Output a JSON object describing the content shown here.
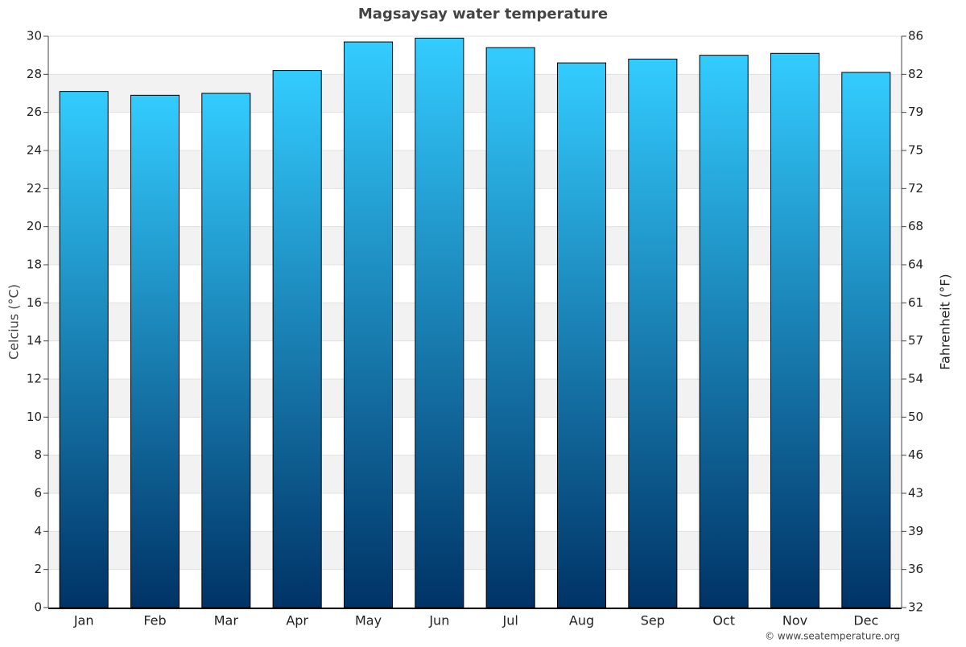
{
  "chart_data": {
    "type": "bar",
    "title": "Magsaysay water temperature",
    "categories": [
      "Jan",
      "Feb",
      "Mar",
      "Apr",
      "May",
      "Jun",
      "Jul",
      "Aug",
      "Sep",
      "Oct",
      "Nov",
      "Dec"
    ],
    "values": [
      27.1,
      26.9,
      27.0,
      28.2,
      29.7,
      29.9,
      29.4,
      28.6,
      28.8,
      29.0,
      29.1,
      28.1
    ],
    "color_top": "#33ccff",
    "color_bottom": "#003366",
    "ylabel": "Celcius (°C)",
    "y2label": "Fahrenheit (°F)",
    "ylim": [
      0,
      30
    ],
    "yticks": [
      0,
      2,
      4,
      6,
      8,
      10,
      12,
      14,
      16,
      18,
      20,
      22,
      24,
      26,
      28,
      30
    ],
    "y2lim": [
      32,
      86
    ],
    "y2ticks": [
      32,
      {
        "value": 35.6,
        "label": "36"
      },
      {
        "value": 39.2,
        "label": "39"
      },
      {
        "value": 42.8,
        "label": "43"
      },
      {
        "value": 46.4,
        "label": "46"
      },
      50,
      {
        "value": 53.6,
        "label": "54"
      },
      {
        "value": 57.2,
        "label": "57"
      },
      {
        "value": 60.8,
        "label": "61"
      },
      {
        "value": 64.4,
        "label": "64"
      },
      68,
      {
        "value": 71.6,
        "label": "72"
      },
      {
        "value": 75.2,
        "label": "75"
      },
      {
        "value": 78.8,
        "label": "79"
      },
      {
        "value": 82.4,
        "label": "82"
      },
      86
    ],
    "grid": true,
    "source": "© www.seatemperature.org"
  }
}
